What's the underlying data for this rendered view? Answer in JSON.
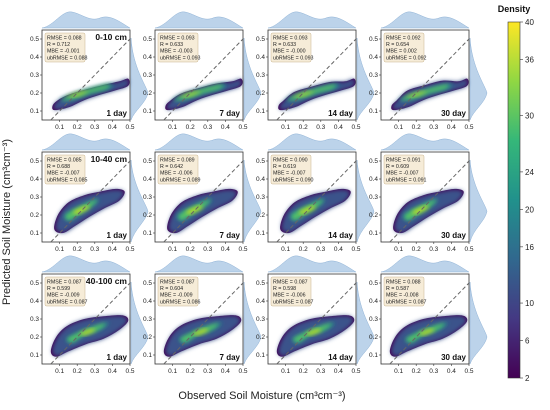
{
  "chart_data": {
    "type": "heatmap",
    "subtype": "density-scatter-grid",
    "xlabel": "Observed Soil Moisture (cm³cm⁻³)",
    "ylabel": "Predicted Soil Moisture (cm³cm⁻³)",
    "xlim": [
      0,
      0.5
    ],
    "ylim": [
      0.05,
      0.55
    ],
    "x_ticks": [
      "0.1",
      "0.2",
      "0.3",
      "0.4",
      "0.5"
    ],
    "y_ticks": [
      "0.1",
      "0.2",
      "0.3",
      "0.4",
      "0.5"
    ],
    "colorbar": {
      "label": "Density",
      "range": [
        2,
        40
      ],
      "ticks": [
        "2",
        "6",
        "10",
        "16",
        "20",
        "24",
        "30",
        "36",
        "40"
      ],
      "colors": [
        "#440154",
        "#443983",
        "#31688e",
        "#21918c",
        "#35b779",
        "#90d743",
        "#fde725"
      ]
    },
    "marginal_color": "#bcd3ea",
    "reference_line": "1:1 dashed",
    "metric_labels": [
      "RMSE",
      "R",
      "MBE",
      "ubRMSE"
    ],
    "rows": [
      {
        "depth": "0-10 cm",
        "panels": [
          {
            "period": "1 day",
            "RMSE": "0.088",
            "R": "0.712",
            "MBE": "-0.001",
            "ubRMSE": "0.088"
          },
          {
            "period": "7 day",
            "RMSE": "0.093",
            "R": "0.633",
            "MBE": "-0.003",
            "ubRMSE": "0.093"
          },
          {
            "period": "14 day",
            "RMSE": "0.093",
            "R": "0.633",
            "MBE": "-0.000",
            "ubRMSE": "0.093"
          },
          {
            "period": "30 day",
            "RMSE": "0.092",
            "R": "0.654",
            "MBE": "0.002",
            "ubRMSE": "0.092"
          }
        ]
      },
      {
        "depth": "10-40 cm",
        "panels": [
          {
            "period": "1 day",
            "RMSE": "0.085",
            "R": "0.688",
            "MBE": "-0.007",
            "ubRMSE": "0.085"
          },
          {
            "period": "7 day",
            "RMSE": "0.089",
            "R": "0.642",
            "MBE": "-0.006",
            "ubRMSE": "0.089"
          },
          {
            "period": "14 day",
            "RMSE": "0.090",
            "R": "0.619",
            "MBE": "-0.007",
            "ubRMSE": "0.090"
          },
          {
            "period": "30 day",
            "RMSE": "0.091",
            "R": "0.609",
            "MBE": "-0.007",
            "ubRMSE": "0.091"
          }
        ]
      },
      {
        "depth": "40-100 cm",
        "panels": [
          {
            "period": "1 day",
            "RMSE": "0.087",
            "R": "0.599",
            "MBE": "-0.009",
            "ubRMSE": "0.087"
          },
          {
            "period": "7 day",
            "RMSE": "0.087",
            "R": "0.604",
            "MBE": "-0.009",
            "ubRMSE": "0.086"
          },
          {
            "period": "14 day",
            "RMSE": "0.087",
            "R": "0.598",
            "MBE": "-0.006",
            "ubRMSE": "0.087"
          },
          {
            "period": "30 day",
            "RMSE": "0.088",
            "R": "0.587",
            "MBE": "-0.008",
            "ubRMSE": "0.087"
          }
        ]
      }
    ]
  }
}
